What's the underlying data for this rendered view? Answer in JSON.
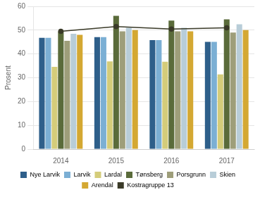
{
  "chart_data": {
    "type": "bar",
    "categories": [
      "2014",
      "2015",
      "2016",
      "2017"
    ],
    "series": [
      {
        "name": "Nye Larvik",
        "values": [
          46.8,
          47.1,
          45.8,
          45.1
        ],
        "color": "#2e5f8a"
      },
      {
        "name": "Larvik",
        "values": [
          46.8,
          47.1,
          45.8,
          45.1
        ],
        "color": "#7bafd4"
      },
      {
        "name": "Lardal",
        "values": [
          34.6,
          36.9,
          36.7,
          31.4
        ],
        "color": "#d4cc7a"
      },
      {
        "name": "Tønsberg",
        "values": [
          49.5,
          56.0,
          54.0,
          54.5
        ],
        "color": "#5a6b3a"
      },
      {
        "name": "Porsgrunn",
        "values": [
          45.5,
          49.5,
          49.5,
          49.0
        ],
        "color": "#9e9e7a"
      },
      {
        "name": "Skien",
        "values": [
          48.5,
          51.0,
          51.0,
          52.5
        ],
        "color": "#b8cdd8"
      },
      {
        "name": "Arendal",
        "values": [
          48.0,
          50.0,
          49.5,
          50.0
        ],
        "color": "#d4a832"
      },
      {
        "name": "Kostragruppe 13",
        "values": [
          49.5,
          51.5,
          50.5,
          51.0
        ],
        "color": "#3a3a28",
        "type": "line",
        "marker": "circle"
      }
    ],
    "ylabel": "Prosent",
    "ylim": [
      0,
      60
    ],
    "yticks": [
      0,
      10,
      20,
      30,
      40,
      50,
      60
    ],
    "grid": true,
    "legend": "bottom"
  }
}
